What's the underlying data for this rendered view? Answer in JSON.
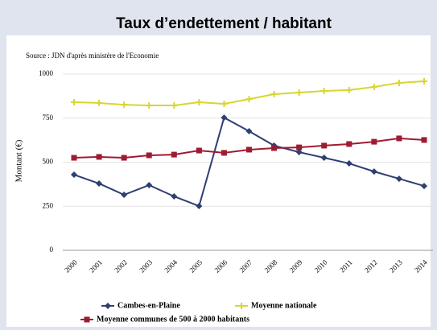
{
  "chart_data": {
    "type": "line",
    "title": "Taux d’endettement / habitant",
    "subtitle": "Source : JDN d'après ministère de l'Economie",
    "y_label": "Montant (€)",
    "categories": [
      "2000",
      "2001",
      "2002",
      "2003",
      "2004",
      "2005",
      "2006",
      "2007",
      "2008",
      "2009",
      "2010",
      "2011",
      "2012",
      "2013",
      "2014"
    ],
    "series": [
      {
        "name": "Cambes-en-Plaine",
        "color": "#2e3f73",
        "marker": "diamond",
        "values": [
          429,
          379,
          315,
          370,
          306,
          251,
          753,
          676,
          594,
          557,
          525,
          493,
          447,
          406,
          365
        ]
      },
      {
        "name": "Moyenne nationale",
        "color": "#d8d630",
        "marker": "plus",
        "values": [
          840,
          836,
          826,
          822,
          822,
          840,
          831,
          858,
          886,
          895,
          904,
          909,
          927,
          950,
          959
        ]
      },
      {
        "name": "Moyenne communes de 500 à 2000 habitants",
        "color": "#9e1b32",
        "marker": "square",
        "values": [
          525,
          530,
          525,
          539,
          543,
          566,
          553,
          571,
          580,
          584,
          594,
          603,
          616,
          635,
          626
        ]
      }
    ],
    "ylim": [
      0,
      1000
    ],
    "yticks": [
      0,
      250,
      500,
      750,
      1000
    ],
    "grid": true
  }
}
